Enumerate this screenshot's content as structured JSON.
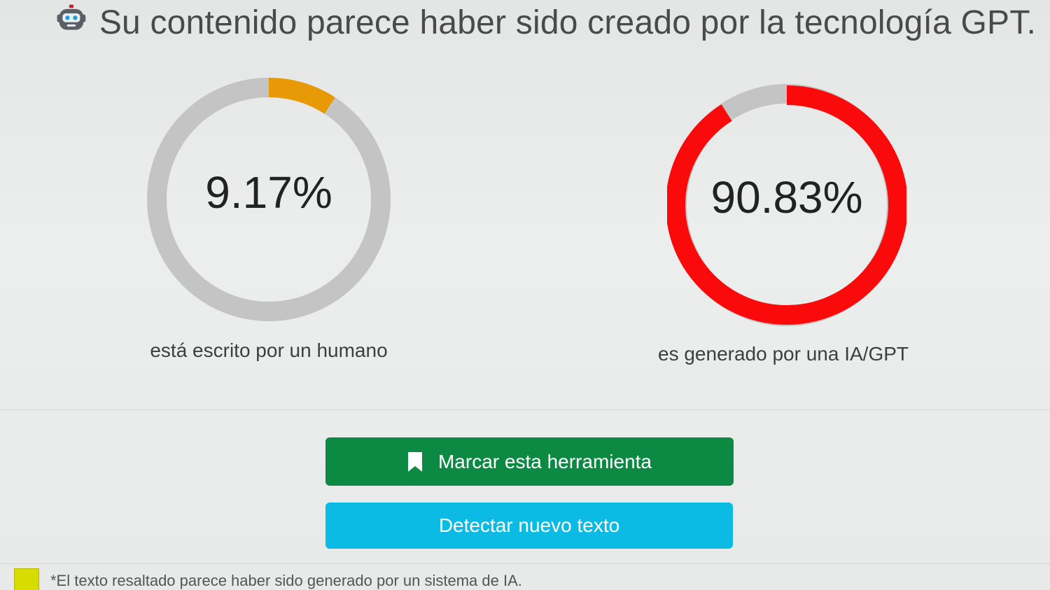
{
  "header": {
    "icon": "robot-icon",
    "title": "Su contenido parece haber sido creado por la tecnología GPT."
  },
  "gauges": {
    "human": {
      "value": "9.17%",
      "fraction": 0.0917,
      "caption": "está escrito por un humano",
      "color": "#e89a06",
      "track_color": "#c4c4c4"
    },
    "ai": {
      "value": "90.83%",
      "fraction": 0.9083,
      "caption": "es generado por una IA/GPT",
      "color": "#fa0a0a",
      "track_color": "#c4c4c4"
    }
  },
  "buttons": {
    "bookmark": {
      "label": "Marcar esta herramienta",
      "icon": "bookmark-icon",
      "color": "#0c8a43"
    },
    "detect": {
      "label": "Detectar nuevo texto",
      "color": "#0bbbe3"
    }
  },
  "legend": {
    "swatch_color": "#d9dc00",
    "text": "*El texto resaltado parece haber sido generado por un sistema de IA."
  }
}
